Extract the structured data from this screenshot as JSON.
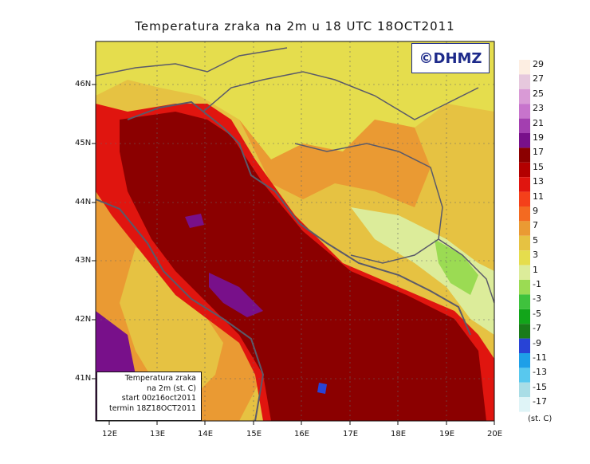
{
  "title": "Temperatura zraka na 2m u 18 UTC 18OCT2011",
  "logo_text": "©DHMZ",
  "info_box": {
    "line1": "Temperatura zraka",
    "line2": "na 2m (st. C)",
    "line3": "start 00z16oct2011",
    "line4": "termin 18Z18OCT2011"
  },
  "legend": {
    "unit": "(st. C)",
    "labels": [
      "29",
      "27",
      "25",
      "23",
      "21",
      "19",
      "17",
      "15",
      "13",
      "11",
      "9",
      "7",
      "5",
      "3",
      "1",
      "-1",
      "-3",
      "-5",
      "-7",
      "-9",
      "-11",
      "-13",
      "-15",
      "-17"
    ],
    "colors": [
      "#fdeee2",
      "#e6c8dd",
      "#d99ad6",
      "#c774cc",
      "#a33fb0",
      "#78108a",
      "#8b0000",
      "#b30000",
      "#e0150f",
      "#f4401a",
      "#f36a21",
      "#ea9a33",
      "#e6c242",
      "#e5dd4d",
      "#dcec9a",
      "#9bdb53",
      "#3fc23d",
      "#12a51a",
      "#1a7b1a",
      "#2843d6",
      "#1e9fe8",
      "#58c8ee",
      "#a9dde6",
      "#dff4f7"
    ]
  },
  "lat_labels": [
    "46N",
    "45N",
    "44N",
    "43N",
    "42N",
    "41N"
  ],
  "lon_labels": [
    "12E",
    "13E",
    "14E",
    "15E",
    "16E",
    "17E",
    "18E",
    "19E",
    "20E"
  ],
  "colors": {
    "sea_warm": "#8b0000",
    "sea_coast": "#e0150f",
    "land_mid": "#e6c242",
    "land_warm": "#ea9a33",
    "land_cool": "#dcec9a",
    "water_purple": "#78108a",
    "borders": "#5a5a6a"
  }
}
